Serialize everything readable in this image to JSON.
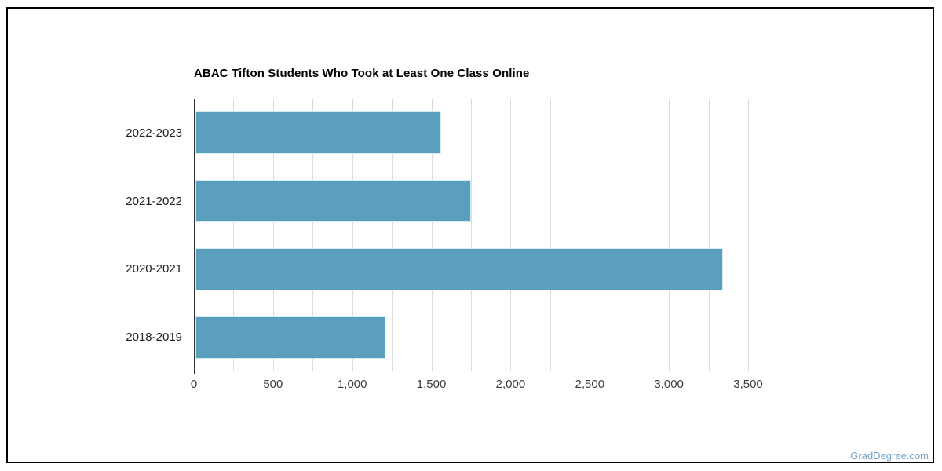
{
  "chart_data": {
    "type": "bar",
    "orientation": "horizontal",
    "title": "ABAC Tifton Students Who Took at Least One Class Online",
    "categories": [
      "2022-2023",
      "2021-2022",
      "2020-2021",
      "2018-2019"
    ],
    "values": [
      1550,
      1740,
      3330,
      1200
    ],
    "xlabel": "",
    "ylabel": "",
    "xlim": [
      0,
      3500
    ],
    "x_tick_step": 500,
    "x_minor_gridline_step": 250,
    "x_tick_labels": [
      "0",
      "500",
      "1,000",
      "1,500",
      "2,000",
      "2,500",
      "3,000",
      "3,500"
    ],
    "grid": "vertical minor gridlines on, horizontal off",
    "legend": "none",
    "bar_color": "#5AA0BD",
    "bar_border_color": "#D5EAF2",
    "gridline_color": "#DCDCDC",
    "axis_line_color": "#333333"
  },
  "watermark": {
    "label": "GradDegree.com",
    "color": "#6FA2C8"
  }
}
